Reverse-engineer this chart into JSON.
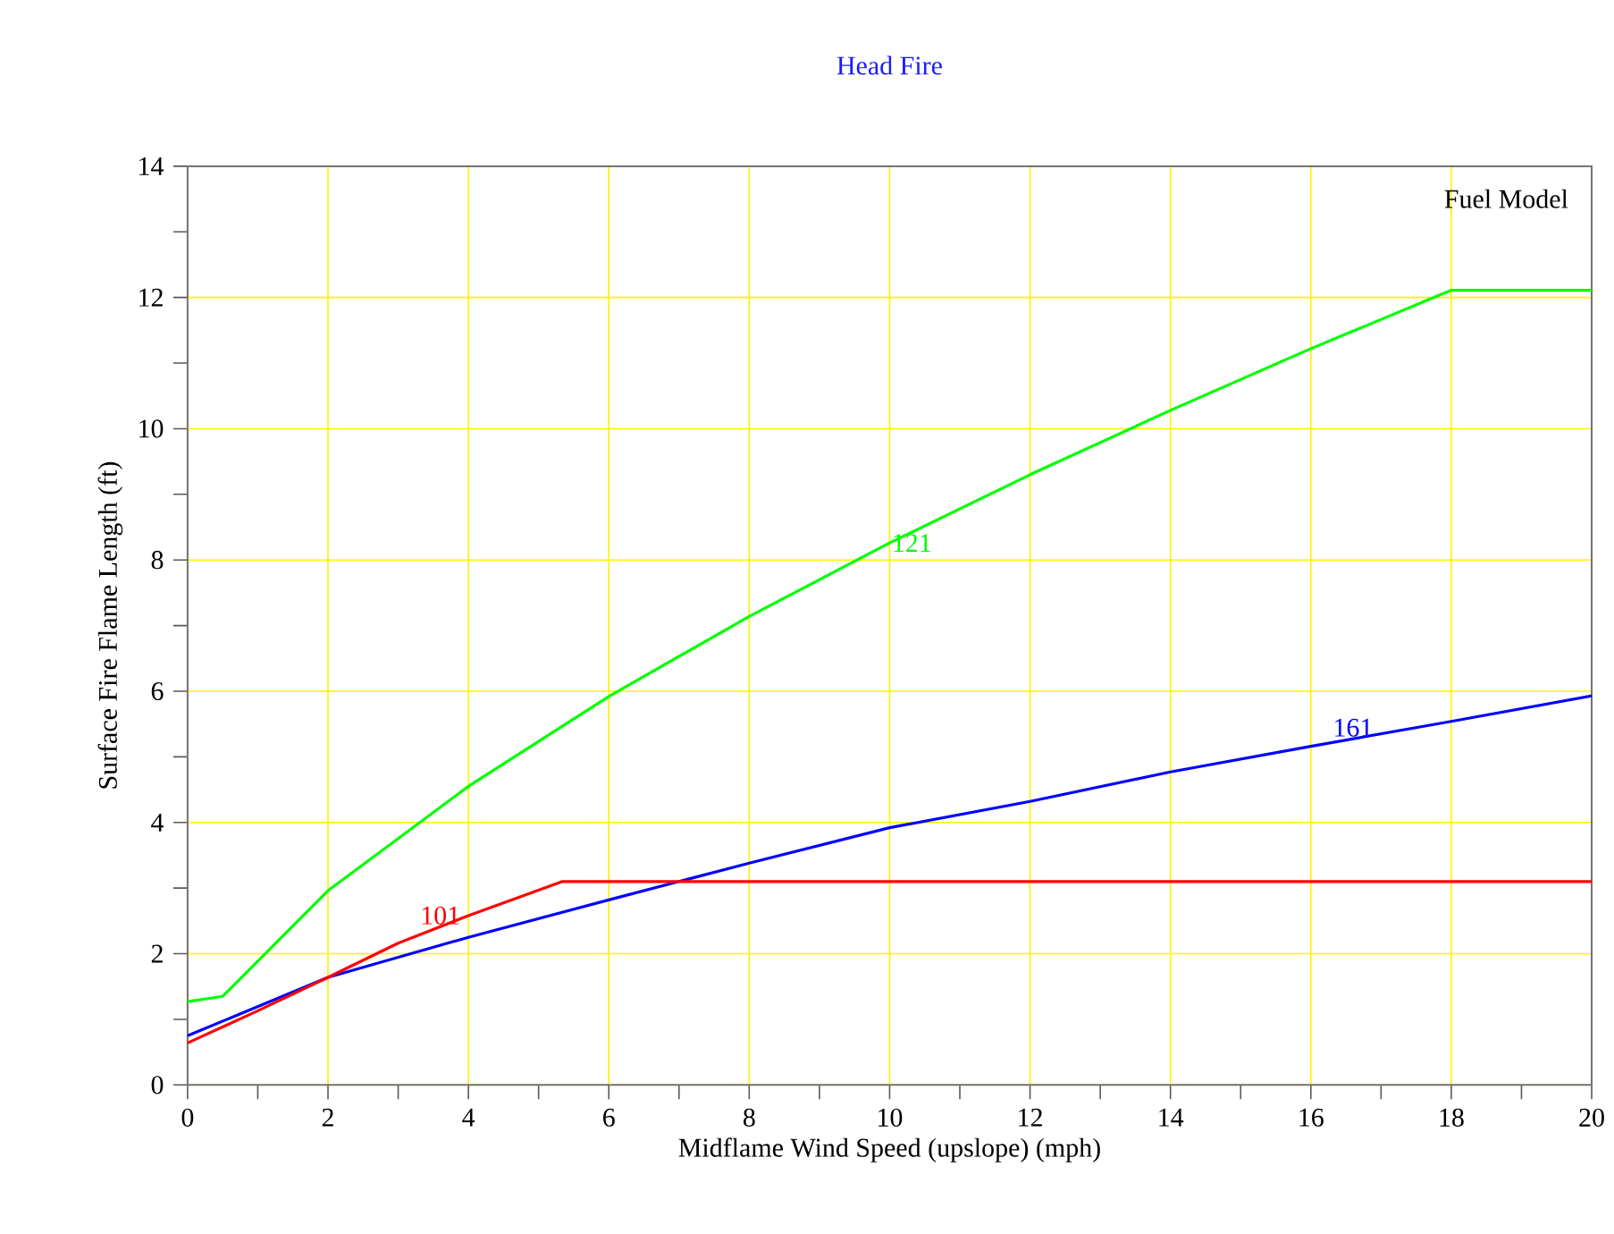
{
  "chart_data": {
    "type": "line",
    "title": "Head Fire",
    "xlabel": "Midflame Wind Speed (upslope)  (mph)",
    "ylabel": "Surface Fire Flame Length (ft)",
    "legend_title": "Fuel Model",
    "xlim": [
      0,
      20
    ],
    "ylim": [
      0,
      14
    ],
    "xticks": [
      0,
      2,
      4,
      6,
      8,
      10,
      12,
      14,
      16,
      18,
      20
    ],
    "yticks": [
      0,
      2,
      4,
      6,
      8,
      10,
      12,
      14
    ],
    "grid": true,
    "marker": "none",
    "line_style": "solid",
    "series": [
      {
        "name": "121",
        "color": "#00ff00",
        "x": [
          0,
          0.5,
          2,
          4,
          6,
          8,
          10,
          12,
          14,
          16,
          18,
          20
        ],
        "values": [
          1.27,
          1.35,
          2.96,
          4.55,
          5.92,
          7.14,
          8.26,
          9.3,
          10.28,
          11.22,
          12.11,
          12.11
        ]
      },
      {
        "name": "161",
        "color": "#0000ff",
        "x": [
          0,
          2,
          4,
          6,
          8,
          10,
          12,
          14,
          16,
          18,
          20
        ],
        "values": [
          0.75,
          1.64,
          2.25,
          2.82,
          3.38,
          3.92,
          4.32,
          4.77,
          5.16,
          5.54,
          5.93
        ]
      },
      {
        "name": "101",
        "color": "#ff0000",
        "x": [
          0,
          1,
          2,
          3,
          4,
          5.34,
          20
        ],
        "values": [
          0.64,
          1.13,
          1.64,
          2.16,
          2.58,
          3.1,
          3.1
        ]
      }
    ]
  }
}
